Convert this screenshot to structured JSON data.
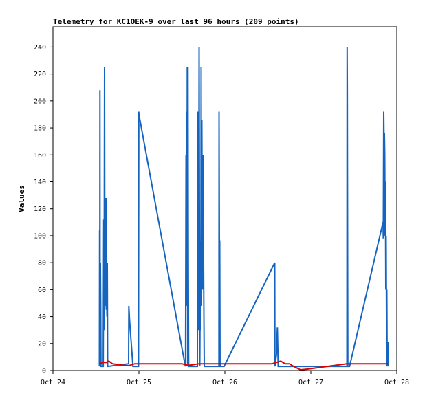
{
  "chart_data": {
    "type": "line",
    "title": "Telemetry for KC1OEK-9 over last 96 hours (209 points)",
    "xlabel": "",
    "ylabel": "Values",
    "x_tick_labels": [
      "Oct 24",
      "Oct 25",
      "Oct 26",
      "Oct 27",
      "Oct 28"
    ],
    "x_range_days": [
      0,
      4
    ],
    "ylim": [
      0,
      255
    ],
    "y_ticks": [
      0,
      20,
      40,
      60,
      80,
      100,
      120,
      140,
      160,
      180,
      200,
      220,
      240
    ],
    "grid": false,
    "legend": "none",
    "series": [
      {
        "color": "#1565c0",
        "points": [
          [
            0.54,
            3
          ],
          [
            0.542,
            104
          ],
          [
            0.544,
            10
          ],
          [
            0.546,
            208
          ],
          [
            0.548,
            20
          ],
          [
            0.552,
            80
          ],
          [
            0.556,
            40
          ],
          [
            0.558,
            3
          ],
          [
            0.585,
            3
          ],
          [
            0.59,
            112
          ],
          [
            0.594,
            30
          ],
          [
            0.6,
            225
          ],
          [
            0.604,
            48
          ],
          [
            0.608,
            112
          ],
          [
            0.612,
            55
          ],
          [
            0.616,
            128
          ],
          [
            0.62,
            45
          ],
          [
            0.624,
            80
          ],
          [
            0.628,
            40
          ],
          [
            0.632,
            80
          ],
          [
            0.636,
            3
          ],
          [
            0.88,
            5
          ],
          [
            0.882,
            48
          ],
          [
            0.89,
            38
          ],
          [
            0.93,
            3
          ],
          [
            0.995,
            3
          ],
          [
            0.998,
            192
          ],
          [
            1.0,
            190
          ],
          [
            1.54,
            3
          ],
          [
            1.542,
            6
          ],
          [
            1.548,
            160
          ],
          [
            1.552,
            48
          ],
          [
            1.556,
            192
          ],
          [
            1.56,
            90
          ],
          [
            1.562,
            225
          ],
          [
            1.566,
            3
          ],
          [
            1.57,
            225
          ],
          [
            1.574,
            80
          ],
          [
            1.578,
            3
          ],
          [
            1.68,
            3
          ],
          [
            1.683,
            192
          ],
          [
            1.686,
            60
          ],
          [
            1.69,
            96
          ],
          [
            1.694,
            30
          ],
          [
            1.7,
            240
          ],
          [
            1.704,
            120
          ],
          [
            1.708,
            3
          ],
          [
            1.716,
            96
          ],
          [
            1.72,
            30
          ],
          [
            1.724,
            225
          ],
          [
            1.728,
            48
          ],
          [
            1.732,
            186
          ],
          [
            1.736,
            112
          ],
          [
            1.74,
            60
          ],
          [
            1.744,
            80
          ],
          [
            1.748,
            160
          ],
          [
            1.752,
            80
          ],
          [
            1.756,
            40
          ],
          [
            1.76,
            3
          ],
          [
            1.93,
            3
          ],
          [
            1.932,
            192
          ],
          [
            1.936,
            97
          ],
          [
            1.94,
            96
          ],
          [
            1.944,
            3
          ],
          [
            1.99,
            3
          ],
          [
            2.58,
            80
          ],
          [
            2.582,
            3
          ],
          [
            2.6,
            12
          ],
          [
            2.61,
            32
          ],
          [
            2.62,
            3
          ],
          [
            3.42,
            3
          ],
          [
            3.422,
            240
          ],
          [
            3.425,
            208
          ],
          [
            3.43,
            3
          ],
          [
            3.45,
            3
          ],
          [
            3.84,
            110
          ],
          [
            3.843,
            98
          ],
          [
            3.848,
            192
          ],
          [
            3.852,
            170
          ],
          [
            3.856,
            176
          ],
          [
            3.86,
            160
          ],
          [
            3.864,
            100
          ],
          [
            3.868,
            140
          ],
          [
            3.872,
            60
          ],
          [
            3.876,
            100
          ],
          [
            3.88,
            40
          ],
          [
            3.884,
            60
          ],
          [
            3.888,
            3
          ],
          [
            3.896,
            21
          ],
          [
            3.9,
            3
          ]
        ]
      },
      {
        "color": "#e00000",
        "points": [
          [
            0.54,
            5
          ],
          [
            0.58,
            6
          ],
          [
            0.62,
            6
          ],
          [
            0.65,
            7
          ],
          [
            0.69,
            5
          ],
          [
            0.75,
            4.5
          ],
          [
            0.8,
            4
          ],
          [
            0.88,
            3.5
          ],
          [
            0.95,
            5
          ],
          [
            1.5,
            5
          ],
          [
            1.56,
            4
          ],
          [
            1.6,
            4
          ],
          [
            1.7,
            5
          ],
          [
            2.55,
            5
          ],
          [
            2.6,
            6
          ],
          [
            2.65,
            7
          ],
          [
            2.7,
            5
          ],
          [
            2.75,
            5
          ],
          [
            2.8,
            3
          ],
          [
            2.88,
            0.5
          ],
          [
            2.96,
            1
          ],
          [
            3.42,
            5
          ],
          [
            3.5,
            5
          ],
          [
            3.6,
            5
          ],
          [
            3.9,
            5
          ]
        ]
      },
      {
        "color": "#000000",
        "points": [
          [
            0.0,
            0
          ],
          [
            4.0,
            0
          ]
        ]
      }
    ]
  }
}
